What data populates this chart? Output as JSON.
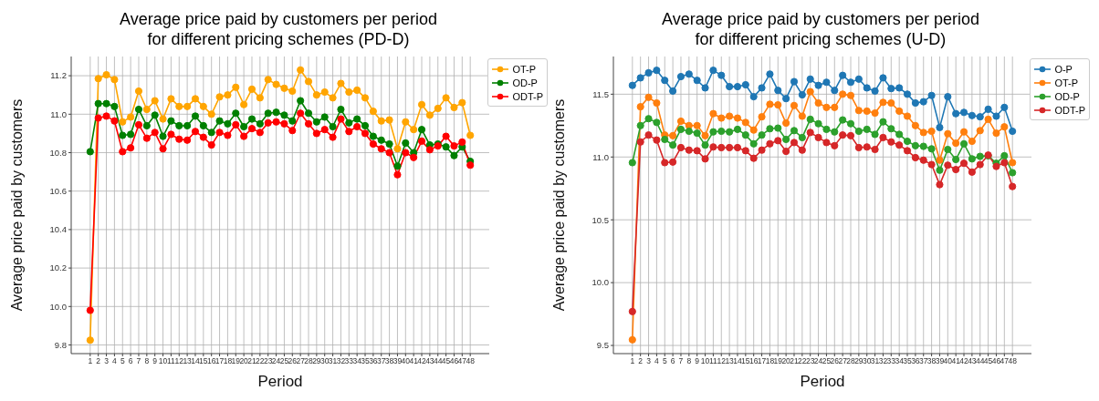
{
  "chart_data": [
    {
      "type": "line",
      "title": "Average price paid by customers per period\nfor different pricing schemes (PD-D)",
      "xlabel": "Period",
      "ylabel": "Average price paid by customers",
      "x": [
        1,
        2,
        3,
        4,
        5,
        6,
        7,
        8,
        9,
        10,
        11,
        12,
        13,
        14,
        15,
        16,
        17,
        18,
        19,
        20,
        21,
        22,
        23,
        24,
        25,
        26,
        27,
        28,
        29,
        30,
        31,
        32,
        33,
        34,
        35,
        36,
        37,
        38,
        39,
        40,
        41,
        42,
        43,
        44,
        45,
        46,
        47,
        48
      ],
      "xlim": [
        -1.35,
        50.35
      ],
      "xticks": [
        1,
        2,
        3,
        4,
        5,
        6,
        7,
        8,
        9,
        10,
        11,
        12,
        13,
        14,
        15,
        16,
        17,
        18,
        19,
        20,
        21,
        22,
        23,
        24,
        25,
        26,
        27,
        28,
        29,
        30,
        31,
        32,
        33,
        34,
        35,
        36,
        37,
        38,
        39,
        40,
        41,
        42,
        43,
        44,
        45,
        46,
        47,
        48
      ],
      "ylim": [
        9.755,
        11.3
      ],
      "yticks": [
        {
          "value": 9.8,
          "label": "9.8"
        },
        {
          "value": 10.0,
          "label": "10.0"
        },
        {
          "value": 10.2,
          "label": "10.2"
        },
        {
          "value": 10.4,
          "label": "10.4"
        },
        {
          "value": 10.6,
          "label": "10.6"
        },
        {
          "value": 10.8,
          "label": "10.8"
        },
        {
          "value": 11.0,
          "label": "11.0"
        },
        {
          "value": 11.2,
          "label": "11.2"
        }
      ],
      "grid": true,
      "legend": "top right",
      "marker": "circle",
      "series": [
        {
          "name": "OT-P",
          "color": "#ffa500",
          "values": [
            9.825,
            11.185,
            11.205,
            11.18,
            10.96,
            10.985,
            11.12,
            11.025,
            11.07,
            10.975,
            11.08,
            11.04,
            11.04,
            11.08,
            11.04,
            11.0,
            11.09,
            11.1,
            11.14,
            11.05,
            11.13,
            11.085,
            11.18,
            11.155,
            11.135,
            11.12,
            11.23,
            11.17,
            11.1,
            11.115,
            11.085,
            11.16,
            11.115,
            11.125,
            11.085,
            11.015,
            10.965,
            10.97,
            10.82,
            10.96,
            10.92,
            11.05,
            10.995,
            11.03,
            11.085,
            11.035,
            11.06,
            10.89
          ]
        },
        {
          "name": "OD-P",
          "color": "#008000",
          "values": [
            10.805,
            11.055,
            11.055,
            11.04,
            10.89,
            10.895,
            11.025,
            10.94,
            10.995,
            10.885,
            10.965,
            10.94,
            10.94,
            10.99,
            10.94,
            10.905,
            10.965,
            10.95,
            11.005,
            10.935,
            10.975,
            10.95,
            11.005,
            11.01,
            10.995,
            10.965,
            11.07,
            11.005,
            10.96,
            10.985,
            10.935,
            11.025,
            10.955,
            10.975,
            10.94,
            10.885,
            10.865,
            10.845,
            10.73,
            10.85,
            10.8,
            10.92,
            10.84,
            10.845,
            10.83,
            10.785,
            10.83,
            10.755
          ]
        },
        {
          "name": "ODT-P",
          "color": "#ff0000",
          "values": [
            9.98,
            10.98,
            10.99,
            10.965,
            10.805,
            10.825,
            10.945,
            10.875,
            10.905,
            10.82,
            10.895,
            10.87,
            10.865,
            10.91,
            10.88,
            10.84,
            10.905,
            10.89,
            10.945,
            10.885,
            10.925,
            10.905,
            10.955,
            10.96,
            10.95,
            10.915,
            11.005,
            10.95,
            10.9,
            10.92,
            10.88,
            10.975,
            10.91,
            10.935,
            10.9,
            10.845,
            10.82,
            10.8,
            10.685,
            10.8,
            10.775,
            10.86,
            10.815,
            10.835,
            10.885,
            10.835,
            10.855,
            10.735
          ]
        }
      ]
    },
    {
      "type": "line",
      "title": "Average price paid by customers per period\nfor different pricing schemes (U-D)",
      "xlabel": "Period",
      "ylabel": "Average price paid by customers",
      "x": [
        1,
        2,
        3,
        4,
        5,
        6,
        7,
        8,
        9,
        10,
        11,
        12,
        13,
        14,
        15,
        16,
        17,
        18,
        19,
        20,
        21,
        22,
        23,
        24,
        25,
        26,
        27,
        28,
        29,
        30,
        31,
        32,
        33,
        34,
        35,
        36,
        37,
        38,
        39,
        40,
        41,
        42,
        43,
        44,
        45,
        46,
        47,
        48
      ],
      "xlim": [
        -1.35,
        50.35
      ],
      "xticks": [
        1,
        2,
        3,
        4,
        5,
        6,
        7,
        8,
        9,
        10,
        11,
        12,
        13,
        14,
        15,
        16,
        17,
        18,
        19,
        20,
        21,
        22,
        23,
        24,
        25,
        26,
        27,
        28,
        29,
        30,
        31,
        32,
        33,
        34,
        35,
        36,
        37,
        38,
        39,
        40,
        41,
        42,
        43,
        44,
        45,
        46,
        47,
        48
      ],
      "ylim": [
        9.435,
        11.8
      ],
      "yticks": [
        9.5,
        {
          "value": 10.0,
          "label": "10.0"
        },
        10.5,
        {
          "value": 11.0,
          "label": "11.0"
        },
        11.5
      ],
      "grid": true,
      "legend": "top right",
      "marker": "circle",
      "series": [
        {
          "name": "O-P",
          "color": "#1f77b4",
          "values": [
            11.57,
            11.63,
            11.67,
            11.69,
            11.61,
            11.525,
            11.64,
            11.66,
            11.61,
            11.55,
            11.69,
            11.65,
            11.56,
            11.56,
            11.575,
            11.48,
            11.55,
            11.66,
            11.53,
            11.465,
            11.6,
            11.495,
            11.62,
            11.57,
            11.595,
            11.53,
            11.65,
            11.595,
            11.62,
            11.55,
            11.525,
            11.63,
            11.545,
            11.55,
            11.5,
            11.43,
            11.44,
            11.49,
            11.235,
            11.48,
            11.345,
            11.355,
            11.33,
            11.32,
            11.38,
            11.325,
            11.395,
            11.205
          ]
        },
        {
          "name": "OT-P",
          "color": "#ff7f0e",
          "values": [
            9.545,
            11.4,
            11.475,
            11.43,
            11.175,
            11.17,
            11.285,
            11.25,
            11.25,
            11.17,
            11.345,
            11.31,
            11.325,
            11.31,
            11.275,
            11.215,
            11.32,
            11.42,
            11.415,
            11.27,
            11.41,
            11.325,
            11.52,
            11.43,
            11.395,
            11.395,
            11.5,
            11.49,
            11.37,
            11.365,
            11.35,
            11.435,
            11.43,
            11.365,
            11.325,
            11.25,
            11.195,
            11.205,
            10.975,
            11.185,
            11.11,
            11.2,
            11.125,
            11.21,
            11.3,
            11.19,
            11.24,
            10.955
          ]
        },
        {
          "name": "OD-P",
          "color": "#2ca02c",
          "values": [
            10.955,
            11.25,
            11.305,
            11.275,
            11.14,
            11.095,
            11.22,
            11.205,
            11.19,
            11.095,
            11.2,
            11.205,
            11.2,
            11.22,
            11.175,
            11.105,
            11.175,
            11.225,
            11.23,
            11.14,
            11.21,
            11.155,
            11.3,
            11.265,
            11.22,
            11.2,
            11.295,
            11.265,
            11.205,
            11.22,
            11.18,
            11.28,
            11.225,
            11.18,
            11.125,
            11.09,
            11.085,
            11.065,
            10.895,
            11.06,
            10.98,
            11.105,
            10.985,
            11.005,
            11.01,
            10.95,
            11.01,
            10.875
          ]
        },
        {
          "name": "ODT-P",
          "color": "#d62728",
          "values": [
            9.77,
            11.12,
            11.175,
            11.135,
            10.955,
            10.96,
            11.075,
            11.055,
            11.05,
            10.985,
            11.08,
            11.075,
            11.075,
            11.075,
            11.05,
            10.99,
            11.055,
            11.105,
            11.13,
            11.045,
            11.115,
            11.055,
            11.195,
            11.155,
            11.115,
            11.09,
            11.175,
            11.17,
            11.075,
            11.08,
            11.06,
            11.155,
            11.12,
            11.095,
            11.05,
            10.995,
            10.975,
            10.94,
            10.78,
            10.935,
            10.9,
            10.95,
            10.88,
            10.94,
            11.015,
            10.925,
            10.955,
            10.765
          ]
        }
      ]
    }
  ]
}
